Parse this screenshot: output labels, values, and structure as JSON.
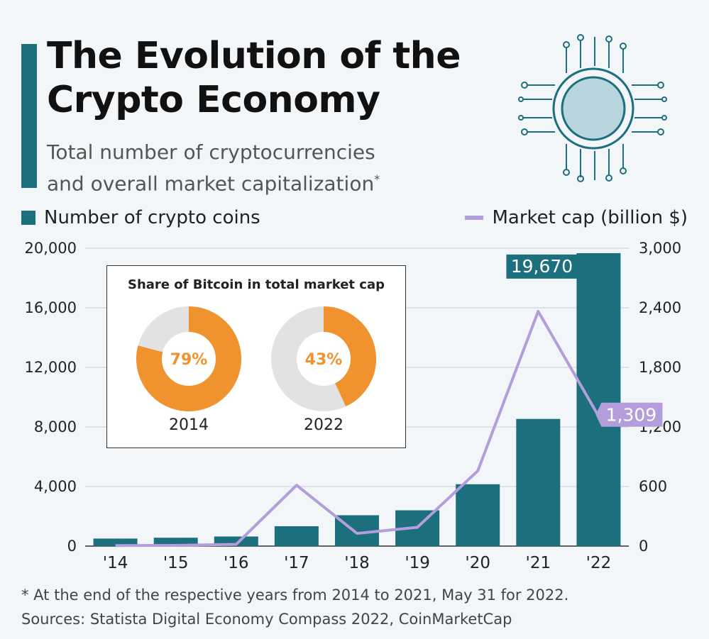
{
  "header": {
    "title": "The Evolution of the Crypto Economy",
    "title_line1": "The Evolution of the",
    "title_line2": "Crypto Economy",
    "subtitle_line1": "Total number of cryptocurrencies",
    "subtitle_line2": "and overall market capitalization",
    "subtitle_mark": "*"
  },
  "legend": {
    "bars": "Number of crypto coins",
    "line": "Market cap (billion $)"
  },
  "colors": {
    "bar": "#1c6f7d",
    "line": "#b39ddb",
    "accent": "#1c6f7d",
    "donut_fill": "#f0922e",
    "donut_rest": "#e2e2e2"
  },
  "chart_data": {
    "type": "bar",
    "categories": [
      "'14",
      "'15",
      "'16",
      "'17",
      "'18",
      "'19",
      "'20",
      "'21",
      "'22"
    ],
    "series": [
      {
        "name": "Number of crypto coins",
        "type": "bar",
        "axis": "left",
        "values": [
          506,
          562,
          644,
          1335,
          2072,
          2403,
          4154,
          8539,
          19670
        ]
      },
      {
        "name": "Market cap (billion $)",
        "type": "line",
        "axis": "right",
        "values": [
          5,
          7,
          18,
          613,
          128,
          189,
          758,
          2364,
          1309
        ]
      }
    ],
    "ylim_left": [
      0,
      20000
    ],
    "ylim_right": [
      0,
      3000
    ],
    "yticks_left": [
      "0",
      "4,000",
      "8,000",
      "12,000",
      "16,000",
      "20,000"
    ],
    "yticks_right": [
      "0",
      "600",
      "1,200",
      "1,800",
      "2,400",
      "3,000"
    ],
    "callouts": {
      "bar_last": "19,670",
      "line_last": "1,309"
    },
    "grid": true
  },
  "inset": {
    "title": "Share of Bitcoin in total market cap",
    "donuts": [
      {
        "year": "2014",
        "share": 79,
        "label": "79%"
      },
      {
        "year": "2022",
        "share": 43,
        "label": "43%"
      }
    ]
  },
  "footer": {
    "note": "* At the end of the respective years from 2014 to 2021, May 31 for 2022.",
    "sources": "Sources: Statista Digital Economy Compass 2022, CoinMarketCap"
  },
  "icons": {
    "header_graphic": "crypto-coin-circuit-icon"
  }
}
